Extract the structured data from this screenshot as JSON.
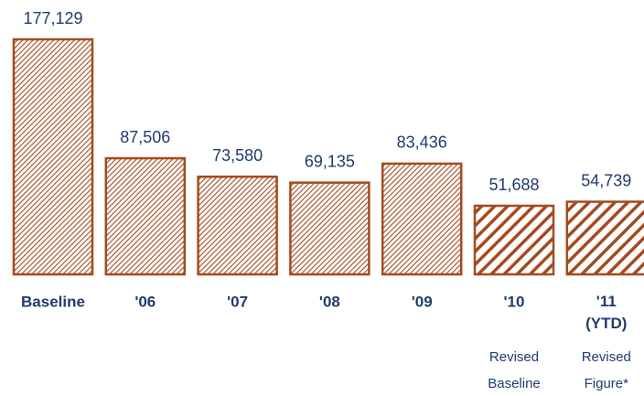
{
  "chart_data": {
    "type": "bar",
    "categories": [
      "Baseline",
      "'06",
      "'07",
      "'08",
      "'09",
      "'10",
      "'11 (YTD)"
    ],
    "values": [
      177129,
      87506,
      73580,
      69135,
      83436,
      51688,
      54739
    ],
    "value_labels": [
      "177,129",
      "87,506",
      "73,580",
      "69,135",
      "83,436",
      "51,688",
      "54,739"
    ],
    "notes": [
      null,
      null,
      null,
      null,
      null,
      "Revised Baseline",
      "Revised Figure*"
    ],
    "hatch": [
      "fine",
      "fine",
      "fine",
      "fine",
      "fine",
      "coarse",
      "coarse"
    ],
    "color": "#a54a1e"
  }
}
